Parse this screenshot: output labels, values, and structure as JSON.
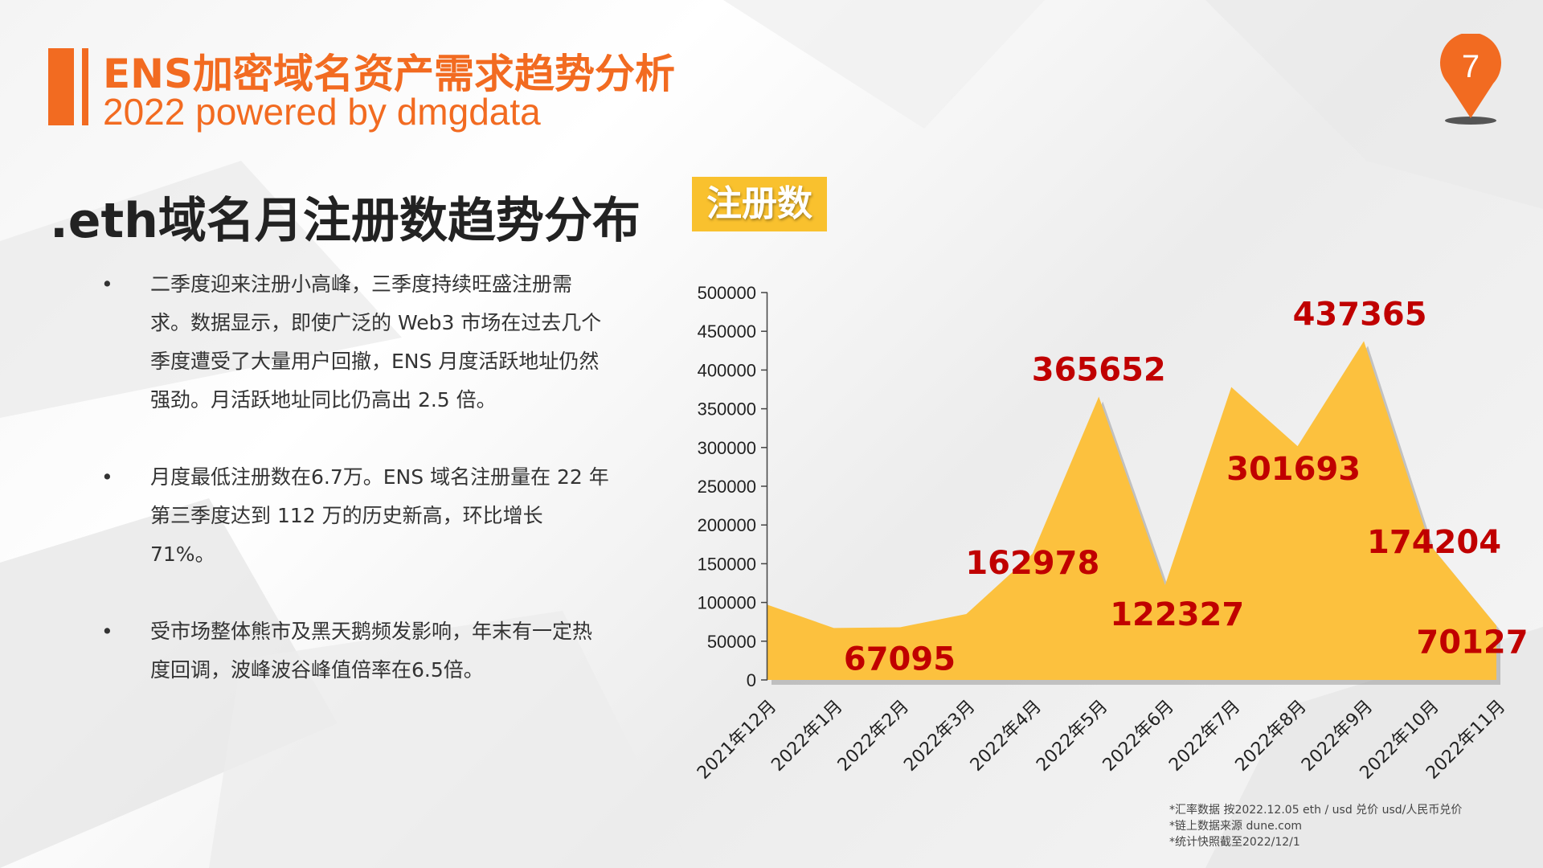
{
  "header": {
    "title": "ENS加密域名资产需求趋势分析",
    "subtitle": "2022 powered by dmgdata",
    "page_number": "7",
    "accent_color": "#f26b21"
  },
  "section": {
    "title": ".eth域名月注册数趋势分布",
    "badge": "注册数",
    "badge_color": "#f9c12e"
  },
  "bullets": [
    "二季度迎来注册小高峰，三季度持续旺盛注册需求。数据显示，即使广泛的 Web3 市场在过去几个季度遭受了大量用户回撤，ENS 月度活跃地址仍然强劲。月活跃地址同比仍高出 2.5 倍。",
    "月度最低注册数在6.7万。ENS 域名注册量在 22 年第三季度达到 112 万的历史新高，环比增长 71%。",
    "受市场整体熊市及黑天鹅频发影响，年末有一定热度回调，波峰波谷峰值倍率在6.5倍。"
  ],
  "footnotes": [
    "*汇率数据 按2022.12.05 eth / usd 兑价 usd/人民币兑价",
    "*链上数据来源 dune.com",
    "*统计快照截至2022/12/1"
  ],
  "chart_data": {
    "type": "area",
    "categories": [
      "2021年12月",
      "2022年1月",
      "2022年2月",
      "2022年3月",
      "2022年4月",
      "2022年5月",
      "2022年6月",
      "2022年7月",
      "2022年8月",
      "2022年9月",
      "2022年10月",
      "2022年11月"
    ],
    "values": [
      97000,
      67095,
      68000,
      85000,
      162978,
      365652,
      122327,
      378000,
      301693,
      437365,
      174204,
      70127
    ],
    "data_labels": [
      null,
      "67095",
      null,
      null,
      "162978",
      "365652",
      "122327",
      null,
      "301693",
      "437365",
      "174204",
      "70127"
    ],
    "yticks": [
      "0",
      "50000",
      "100000",
      "150000",
      "200000",
      "250000",
      "300000",
      "350000",
      "400000",
      "450000",
      "500000"
    ],
    "ylim": [
      0,
      500000
    ],
    "fill_color": "#fcc13e",
    "label_color": "#c00000"
  }
}
